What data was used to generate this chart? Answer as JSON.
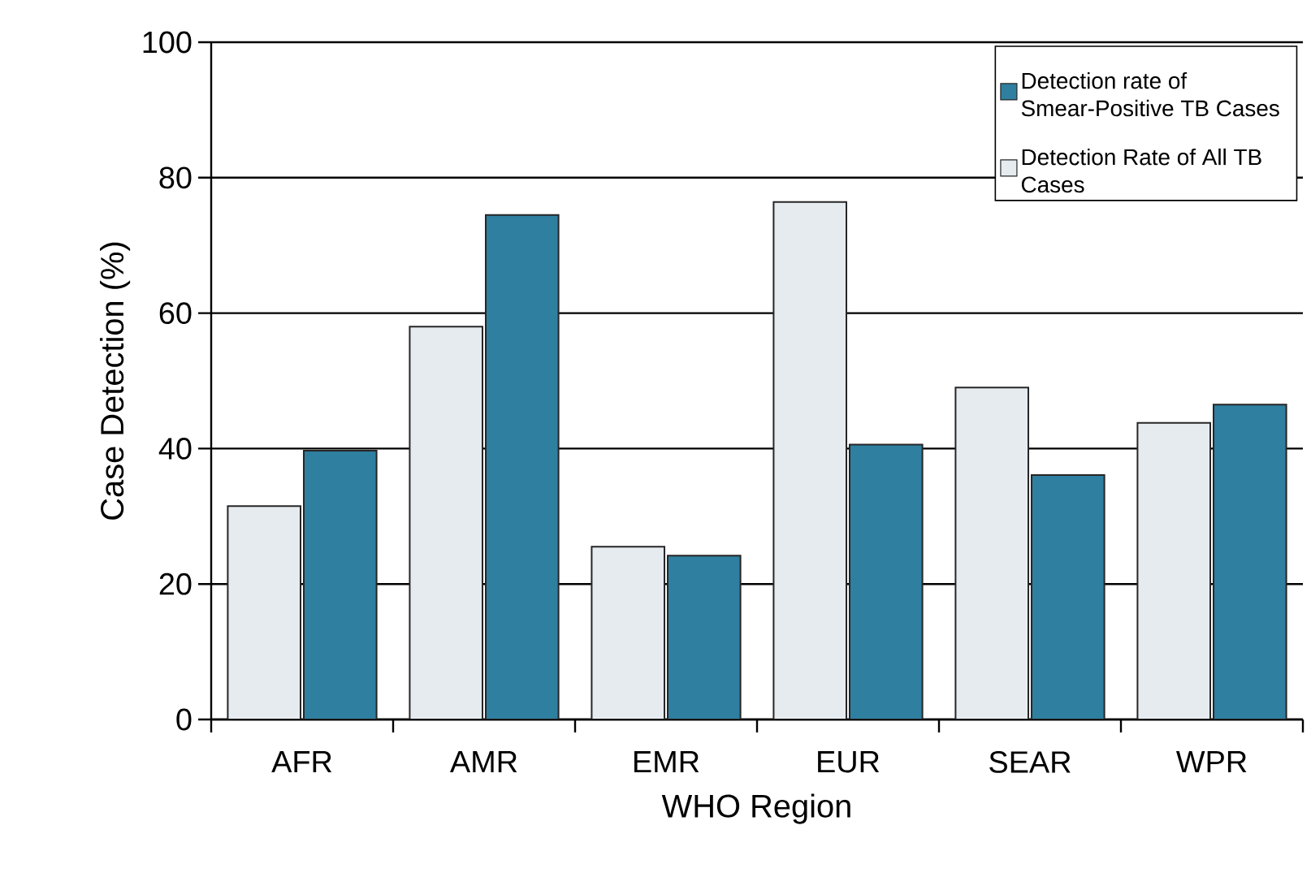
{
  "chart_data": {
    "type": "bar",
    "xlabel": "WHO Region",
    "ylabel": "Case Detection (%)",
    "categories": [
      "AFR",
      "AMR",
      "EMR",
      "EUR",
      "SEAR",
      "WPR"
    ],
    "series": [
      {
        "name": "Detection Rate of All TB Cases",
        "color": "#e6ebf0",
        "values": [
          31.5,
          58,
          25.5,
          76.4,
          49,
          43.8
        ]
      },
      {
        "name": "Detection rate of Smear-Positive TB Cases",
        "color": "#2e7fa0",
        "values": [
          39.7,
          74.5,
          24.2,
          40.6,
          36.1,
          46.5
        ]
      }
    ],
    "ylim": [
      0,
      100
    ],
    "yticks": [
      0,
      20,
      40,
      60,
      80,
      100
    ],
    "grid": "y",
    "legend": "top right"
  }
}
